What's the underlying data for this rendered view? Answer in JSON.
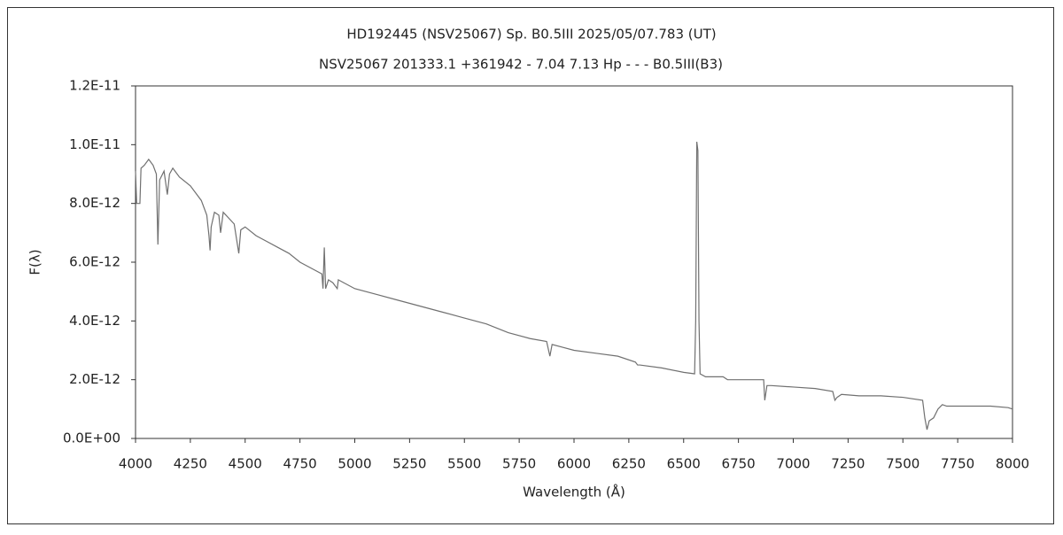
{
  "chart_data": {
    "type": "line",
    "title": "HD192445 (NSV25067)   Sp. B0.5III   2025/05/07.783 (UT)",
    "subtitle": "NSV25067 201333.1 +361942 - 7.04 7.13 Hp - - - B0.5III(B3)",
    "x_label": "Wavelength (Å)",
    "y_label": "F(λ)",
    "xlim": [
      4000,
      8000
    ],
    "xticks": [
      4000,
      4250,
      4500,
      4750,
      5000,
      5250,
      5500,
      5750,
      6000,
      6250,
      6500,
      6750,
      7000,
      7250,
      7500,
      7750,
      8000
    ],
    "ylim": [
      0,
      1.2e-11
    ],
    "yticks": [
      {
        "value": 0,
        "label": "0.0E+00"
      },
      {
        "value": 2e-12,
        "label": "2.0E-12"
      },
      {
        "value": 4e-12,
        "label": "4.0E-12"
      },
      {
        "value": 6e-12,
        "label": "6.0E-12"
      },
      {
        "value": 8e-12,
        "label": "8.0E-12"
      },
      {
        "value": 1e-11,
        "label": "1.0E-11"
      },
      {
        "value": 1.2e-11,
        "label": "1.2E-11"
      }
    ],
    "series": [
      {
        "color": "#707070",
        "x": [
          4000,
          4005,
          4020,
          4025,
          4040,
          4060,
          4080,
          4095,
          4102,
          4110,
          4130,
          4145,
          4155,
          4170,
          4200,
          4250,
          4300,
          4325,
          4335,
          4340,
          4345,
          4360,
          4380,
          4388,
          4400,
          4450,
          4471,
          4480,
          4500,
          4550,
          4600,
          4650,
          4700,
          4750,
          4800,
          4850,
          4855,
          4861,
          4867,
          4880,
          4900,
          4920,
          4925,
          4950,
          5000,
          5100,
          5200,
          5300,
          5400,
          5500,
          5600,
          5700,
          5800,
          5875,
          5890,
          5900,
          5950,
          6000,
          6100,
          6200,
          6280,
          6290,
          6300,
          6400,
          6500,
          6550,
          6555,
          6560,
          6565,
          6570,
          6575,
          6600,
          6680,
          6700,
          6800,
          6865,
          6870,
          6880,
          6900,
          7000,
          7100,
          7180,
          7190,
          7200,
          7220,
          7300,
          7400,
          7500,
          7590,
          7600,
          7610,
          7620,
          7640,
          7660,
          7680,
          7700,
          7800,
          7900,
          7980,
          8000
        ],
        "values": [
          9.1e-12,
          8e-12,
          8e-12,
          9.2e-12,
          9.3e-12,
          9.5e-12,
          9.3e-12,
          9e-12,
          6.6e-12,
          8.8e-12,
          9.1e-12,
          8.3e-12,
          9e-12,
          9.2e-12,
          8.9e-12,
          8.6e-12,
          8.1e-12,
          7.6e-12,
          6.9e-12,
          6.4e-12,
          7.2e-12,
          7.7e-12,
          7.6e-12,
          7e-12,
          7.7e-12,
          7.3e-12,
          6.3e-12,
          7.1e-12,
          7.2e-12,
          6.9e-12,
          6.7e-12,
          6.5e-12,
          6.3e-12,
          6e-12,
          5.8e-12,
          5.6e-12,
          5.1e-12,
          6.5e-12,
          5.1e-12,
          5.4e-12,
          5.3e-12,
          5.1e-12,
          5.4e-12,
          5.3e-12,
          5.1e-12,
          4.9e-12,
          4.7e-12,
          4.5e-12,
          4.3e-12,
          4.1e-12,
          3.9e-12,
          3.6e-12,
          3.4e-12,
          3.3e-12,
          2.8e-12,
          3.2e-12,
          3.1e-12,
          3e-12,
          2.9e-12,
          2.8e-12,
          2.6e-12,
          2.5e-12,
          2.5e-12,
          2.4e-12,
          2.25e-12,
          2.2e-12,
          4e-12,
          1.01e-11,
          9.8e-12,
          4e-12,
          2.2e-12,
          2.1e-12,
          2.1e-12,
          2e-12,
          2e-12,
          2e-12,
          1.3e-12,
          1.8e-12,
          1.8e-12,
          1.75e-12,
          1.7e-12,
          1.6e-12,
          1.3e-12,
          1.4e-12,
          1.5e-12,
          1.45e-12,
          1.45e-12,
          1.4e-12,
          1.3e-12,
          7e-13,
          3e-13,
          6e-13,
          7e-13,
          1e-12,
          1.15e-12,
          1.1e-12,
          1.1e-12,
          1.1e-12,
          1.05e-12,
          1e-12
        ]
      }
    ]
  }
}
